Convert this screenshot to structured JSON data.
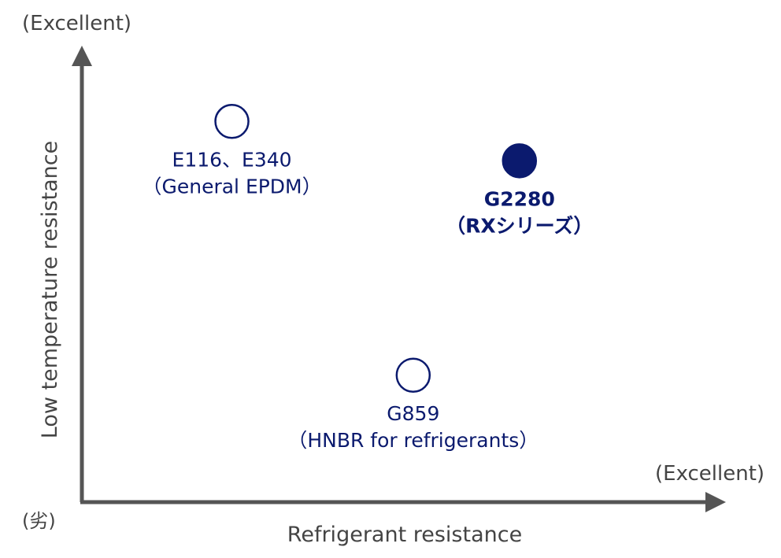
{
  "chart_data": {
    "type": "scatter",
    "title": "",
    "xlabel": "Refrigerant resistance",
    "ylabel": "Low temperature resistance",
    "x_high_label": "(Excellent)",
    "y_high_label": "(Excellent)",
    "origin_label": "(劣)",
    "xlim": [
      0,
      100
    ],
    "ylim": [
      0,
      100
    ],
    "grid": false,
    "legend": "none",
    "points": [
      {
        "name": "E116、E340",
        "sublabel": "（General EPDM）",
        "x": 24,
        "y": 87,
        "filled": false,
        "bold": false
      },
      {
        "name": "G2280",
        "sublabel": "（RXシリーズ）",
        "x": 70,
        "y": 78,
        "filled": true,
        "bold": true
      },
      {
        "name": "G859",
        "sublabel": "（HNBR for refrigerants）",
        "x": 53,
        "y": 29,
        "filled": false,
        "bold": false
      }
    ],
    "colors": {
      "axis": "#555555",
      "marker": "#0b1a6e",
      "text": "#444444"
    }
  }
}
